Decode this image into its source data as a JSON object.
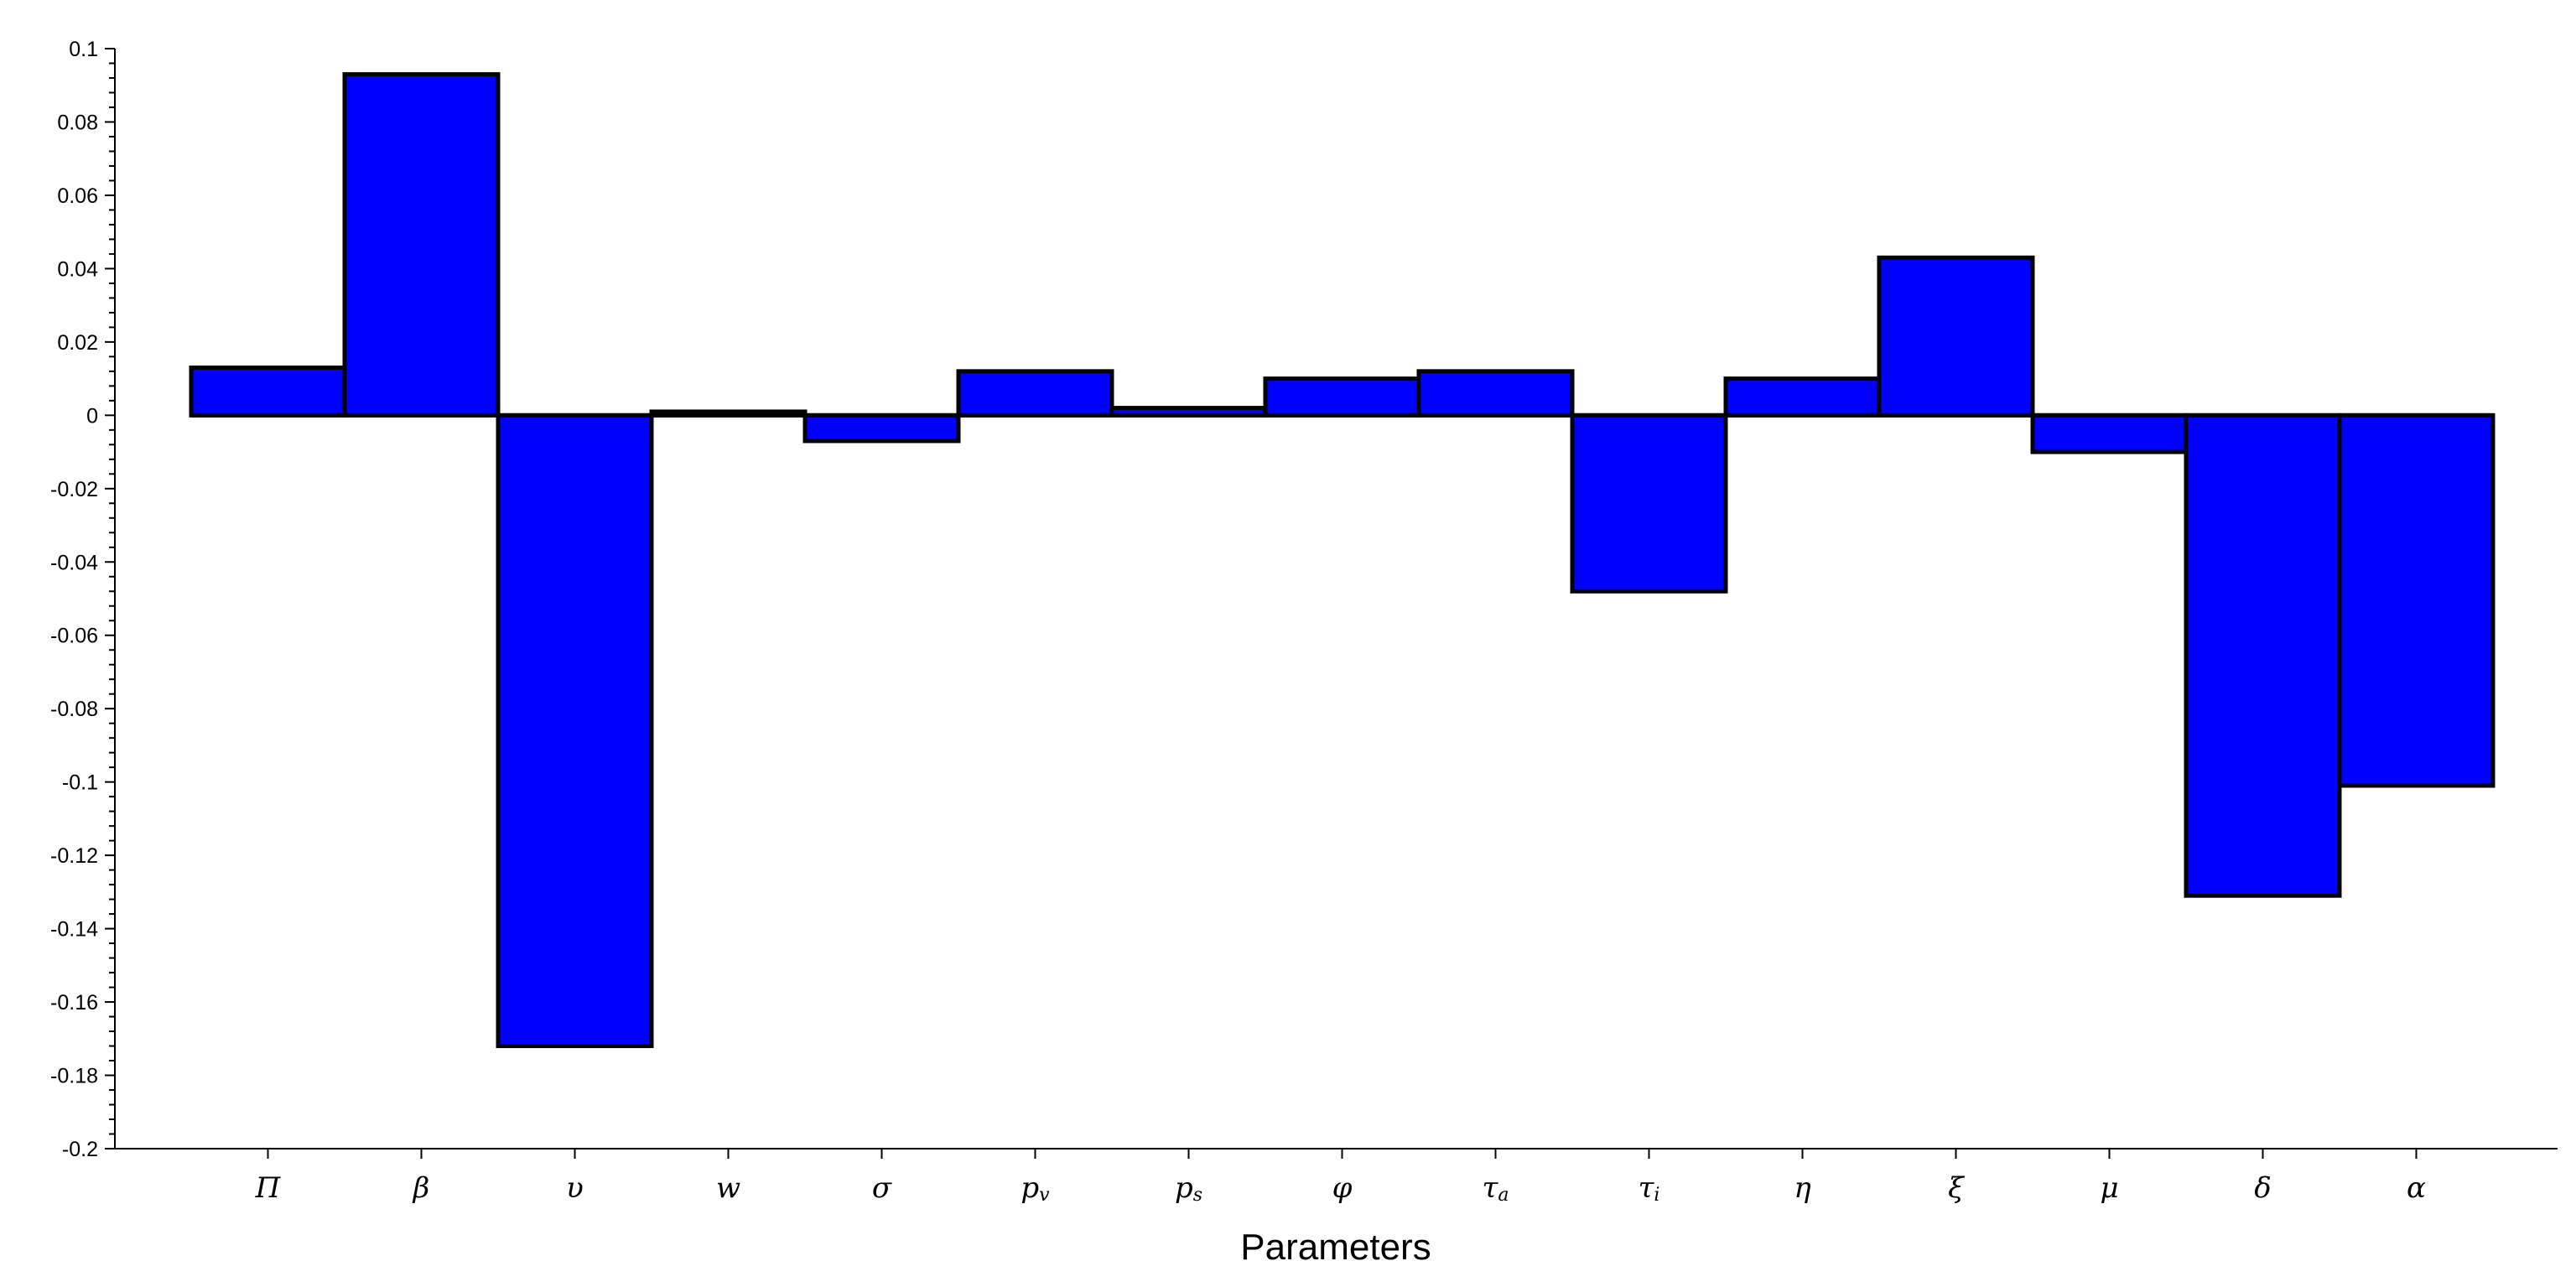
{
  "chart_data": {
    "type": "bar",
    "title": "",
    "xlabel": "Parameters",
    "ylabel": "",
    "categories": [
      "Π",
      "β",
      "υ",
      "w",
      "σ",
      "p_v",
      "p_s",
      "φ",
      "τ_a",
      "τ_i",
      "η",
      "ξ",
      "μ",
      "δ",
      "α"
    ],
    "category_labels": [
      {
        "base": "Π",
        "sub": ""
      },
      {
        "base": "β",
        "sub": ""
      },
      {
        "base": "υ",
        "sub": ""
      },
      {
        "base": "w",
        "sub": ""
      },
      {
        "base": "σ",
        "sub": ""
      },
      {
        "base": "p",
        "sub": "v"
      },
      {
        "base": "p",
        "sub": "s"
      },
      {
        "base": "φ",
        "sub": ""
      },
      {
        "base": "τ",
        "sub": "a"
      },
      {
        "base": "τ",
        "sub": "i"
      },
      {
        "base": "η",
        "sub": ""
      },
      {
        "base": "ξ",
        "sub": ""
      },
      {
        "base": "μ",
        "sub": ""
      },
      {
        "base": "δ",
        "sub": ""
      },
      {
        "base": "α",
        "sub": ""
      }
    ],
    "values": [
      0.013,
      0.093,
      -0.172,
      0.001,
      -0.007,
      0.012,
      0.002,
      0.01,
      0.012,
      -0.048,
      0.01,
      0.043,
      -0.01,
      -0.131,
      -0.101
    ],
    "ylim": [
      -0.2,
      0.1
    ],
    "yticks": [
      "0.1",
      "0.08",
      "0.06",
      "0.04",
      "0.02",
      "0",
      "-0.02",
      "-0.04",
      "-0.06",
      "-0.08",
      "-0.1",
      "-0.12",
      "-0.14",
      "-0.16",
      "-0.18",
      "-0.2"
    ],
    "grid": false,
    "legend": "none",
    "bar_color": "#0000ff",
    "edge_color": "#000000"
  }
}
